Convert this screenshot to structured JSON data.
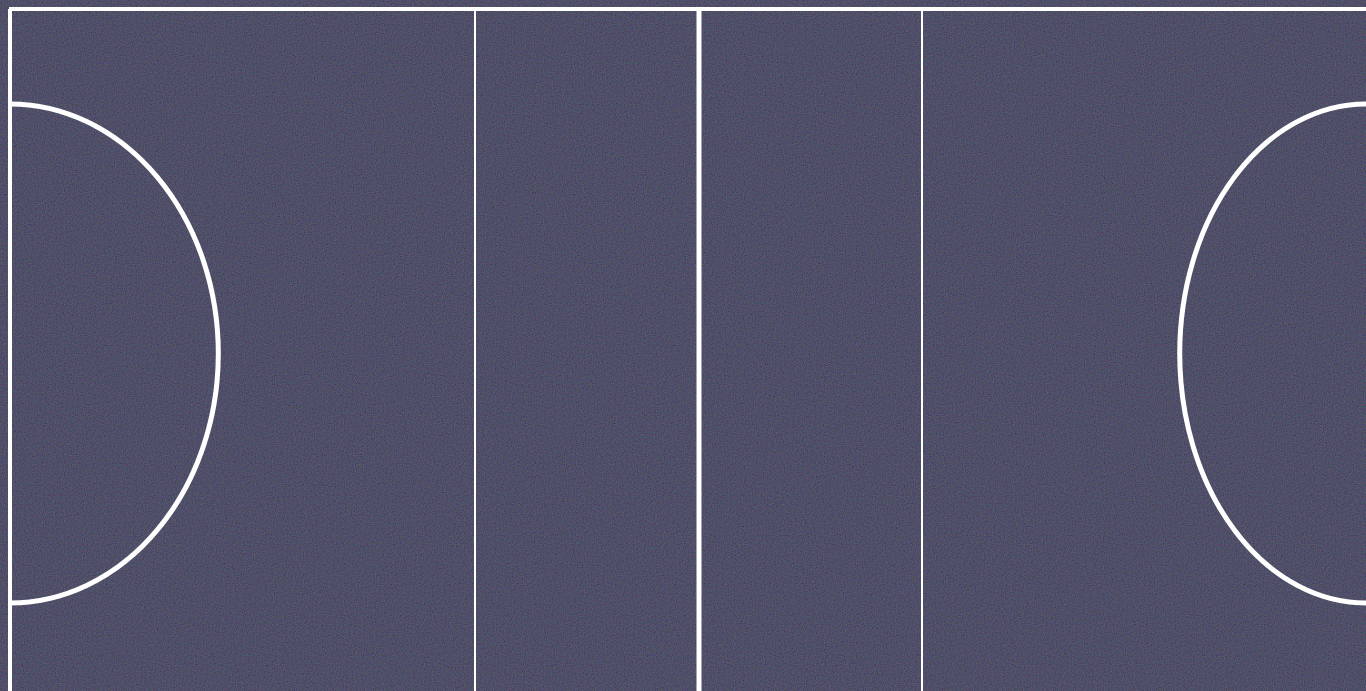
{
  "court": {
    "surface_color": "#121216",
    "speckle_colors": [
      "#4a4a6e",
      "#5e5e44",
      "#3a3a52",
      "#6a6a80"
    ],
    "line_color": "#ffffff",
    "sections": 4,
    "shooting_circles": [
      "left",
      "right"
    ]
  }
}
